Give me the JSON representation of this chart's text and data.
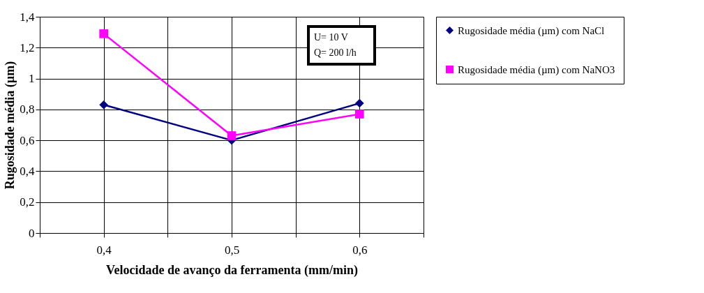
{
  "chart_data": {
    "type": "line",
    "xlabel": "Velocidade de avanço da ferramenta (mm/min)",
    "ylabel": "Rugosidade média (µm)",
    "categories": [
      "0,4",
      "0,5",
      "0,6"
    ],
    "series": [
      {
        "name": "Rugosidade média (µm) com NaCl",
        "color": "#000080",
        "marker": "diamond",
        "values": [
          0.83,
          0.6,
          0.84
        ]
      },
      {
        "name": "Rugosidade média (µm) com NaNO3",
        "color": "#ff00ff",
        "marker": "square",
        "values": [
          1.29,
          0.63,
          0.77
        ]
      }
    ],
    "ylim": [
      0,
      1.4
    ],
    "yticks": [
      0,
      {
        "value": 0.2,
        "label": "0,2"
      },
      {
        "value": 0.4,
        "label": "0,4"
      },
      {
        "value": 0.6,
        "label": "0,6"
      },
      {
        "value": 0.8,
        "label": "0,8"
      },
      1,
      {
        "value": 1.2,
        "label": "1,2"
      },
      {
        "value": 1.4,
        "label": "1,4"
      }
    ],
    "grid": true,
    "legend": "right",
    "line_style": "solid",
    "annotations": [
      "U= 10 V",
      "Q= 200 l/h"
    ]
  }
}
